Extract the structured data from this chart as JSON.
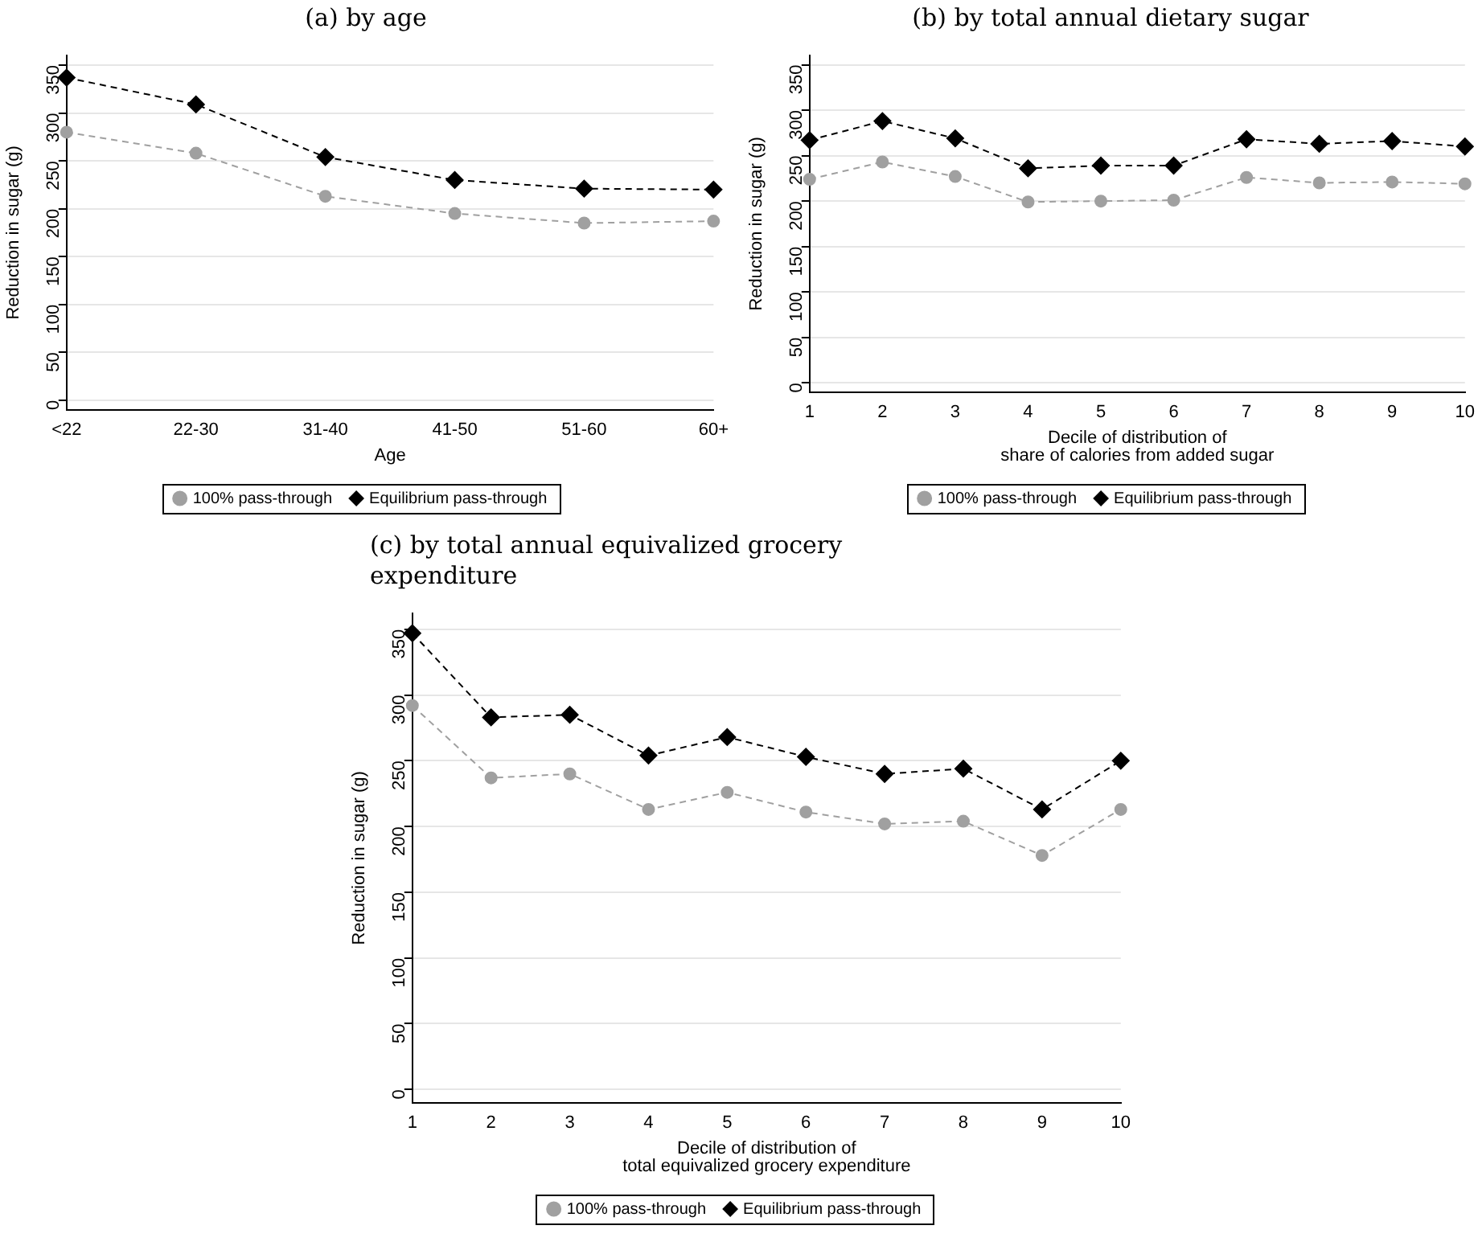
{
  "chart_data": [
    {
      "type": "line",
      "title": "(a) by age",
      "xlabel": "Age",
      "ylabel": "Reduction in sugar (g)",
      "categories": [
        "<22",
        "22-30",
        "31-40",
        "41-50",
        "51-60",
        "60+"
      ],
      "series": [
        {
          "name": "100% pass-through",
          "color": "#a0a0a0",
          "marker": "circle",
          "values": [
            280,
            258,
            213,
            195,
            185,
            187
          ]
        },
        {
          "name": "Equilibrium pass-through",
          "color": "#000000",
          "marker": "diamond",
          "values": [
            337,
            309,
            254,
            230,
            221,
            220
          ]
        }
      ],
      "ylim": [
        -10,
        360
      ],
      "yticks": [
        0,
        50,
        100,
        150,
        200,
        250,
        300,
        350
      ],
      "grid": "y",
      "legend": "bottom",
      "line_style": "dashed"
    },
    {
      "type": "line",
      "title": "(b) by total annual dietary sugar",
      "xlabel": "Decile of distribution of\nshare of calories from added sugar",
      "ylabel": "Reduction in sugar (g)",
      "categories": [
        "1",
        "2",
        "3",
        "4",
        "5",
        "6",
        "7",
        "8",
        "9",
        "10"
      ],
      "series": [
        {
          "name": "100% pass-through",
          "color": "#a0a0a0",
          "marker": "circle",
          "values": [
            224,
            243,
            227,
            199,
            200,
            201,
            226,
            220,
            221,
            219
          ]
        },
        {
          "name": "Equilibrium pass-through",
          "color": "#000000",
          "marker": "diamond",
          "values": [
            267,
            288,
            269,
            236,
            239,
            239,
            268,
            263,
            266,
            260
          ]
        }
      ],
      "ylim": [
        -10,
        360
      ],
      "yticks": [
        0,
        50,
        100,
        150,
        200,
        250,
        300,
        350
      ],
      "grid": "y",
      "legend": "bottom",
      "line_style": "dashed"
    },
    {
      "type": "line",
      "title": "(c) by total annual equivalized grocery expenditure",
      "xlabel": "Decile of distribution of\ntotal equivalized grocery expenditure",
      "ylabel": "Reduction in sugar (g)",
      "categories": [
        "1",
        "2",
        "3",
        "4",
        "5",
        "6",
        "7",
        "8",
        "9",
        "10"
      ],
      "series": [
        {
          "name": "100% pass-through",
          "color": "#a0a0a0",
          "marker": "circle",
          "values": [
            292,
            237,
            240,
            213,
            226,
            211,
            202,
            204,
            178,
            213
          ]
        },
        {
          "name": "Equilibrium pass-through",
          "color": "#000000",
          "marker": "diamond",
          "values": [
            347,
            283,
            285,
            254,
            268,
            253,
            240,
            244,
            213,
            250
          ]
        }
      ],
      "ylim": [
        -10,
        362
      ],
      "yticks": [
        0,
        50,
        100,
        150,
        200,
        250,
        300,
        350
      ],
      "grid": "y",
      "legend": "bottom",
      "line_style": "dashed"
    }
  ]
}
